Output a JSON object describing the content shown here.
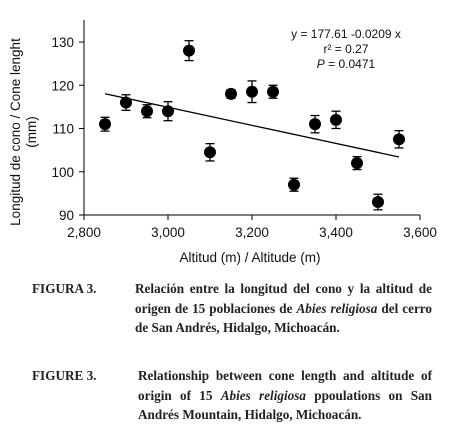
{
  "chart_data": {
    "type": "scatter",
    "xlabel": "Altitud (m) / Altitude (m)",
    "ylabel_line1": "Longitud de cono / Cone lenght",
    "ylabel_line2": "(mm)",
    "xlim": [
      2800,
      3600
    ],
    "ylim": [
      90,
      135
    ],
    "x_ticks": [
      2800,
      3000,
      3200,
      3400,
      3600
    ],
    "x_tick_labels": [
      "2,800",
      "3,000",
      "3,200",
      "3,400",
      "3,600"
    ],
    "y_ticks": [
      90,
      100,
      110,
      120,
      130
    ],
    "y_tick_labels": [
      "90",
      "100",
      "110",
      "120",
      "130"
    ],
    "grid": false,
    "points": [
      {
        "x": 2850,
        "y": 111.0,
        "err": 1.6
      },
      {
        "x": 2900,
        "y": 116.0,
        "err": 1.8
      },
      {
        "x": 2950,
        "y": 114.0,
        "err": 1.5
      },
      {
        "x": 3000,
        "y": 114.0,
        "err": 2.2
      },
      {
        "x": 3050,
        "y": 128.0,
        "err": 2.3
      },
      {
        "x": 3100,
        "y": 104.5,
        "err": 2.0
      },
      {
        "x": 3150,
        "y": 118.0,
        "err": 1.0
      },
      {
        "x": 3200,
        "y": 118.5,
        "err": 2.5
      },
      {
        "x": 3250,
        "y": 118.5,
        "err": 1.5
      },
      {
        "x": 3300,
        "y": 97.0,
        "err": 1.5
      },
      {
        "x": 3350,
        "y": 111.0,
        "err": 2.0
      },
      {
        "x": 3400,
        "y": 112.0,
        "err": 2.0
      },
      {
        "x": 3450,
        "y": 102.0,
        "err": 1.5
      },
      {
        "x": 3500,
        "y": 93.0,
        "err": 1.8
      },
      {
        "x": 3550,
        "y": 107.5,
        "err": 2.0
      }
    ],
    "regression": {
      "intercept": 177.61,
      "slope": -0.0209,
      "x_range": [
        2850,
        3550
      ]
    },
    "annotation": {
      "equation": "y = 177.61 -0.0209 x",
      "r2": "r² = 0.27",
      "p": "P = 0.0471"
    }
  },
  "captions": [
    {
      "label": "FIGURA 3.",
      "text_before": "Relación entre la longitud del cono y la altitud de origen de 15 poblaciones de ",
      "species": "Abies religiosa",
      "text_after": " del cerro de San Andrés, Hidalgo, Michoacán."
    },
    {
      "label": "FIGURE 3.",
      "text_before": "Relationship between cone length and altitude of origin of 15 ",
      "species": "Abies religiosa",
      "text_after": " ppoulations on San Andrés Mountain, Hidalgo, Michoacán."
    }
  ]
}
